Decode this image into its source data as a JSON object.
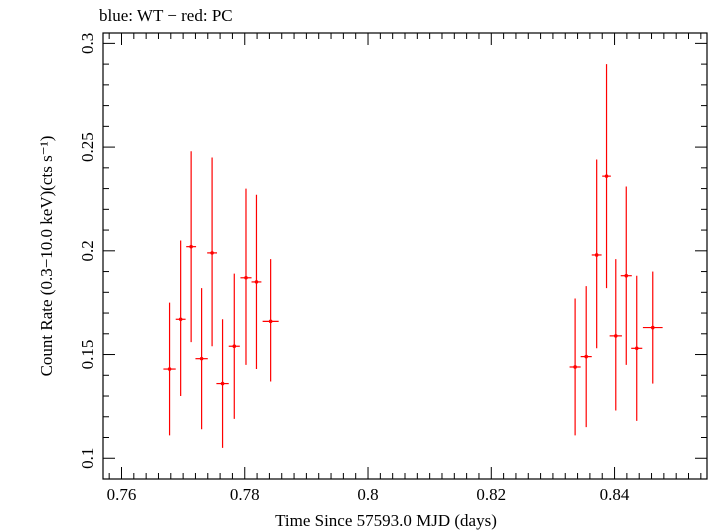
{
  "chart_data": {
    "type": "scatter",
    "title": "blue: WT − red: PC",
    "xlabel": "Time Since 57593.0 MJD (days)",
    "ylabel": "Count Rate (0.3−10.0 keV)(cts s⁻¹)",
    "xlim": [
      0.757,
      0.855
    ],
    "ylim": [
      0.09,
      0.305
    ],
    "x_ticks": [
      0.76,
      0.78,
      0.8,
      0.82,
      0.84
    ],
    "x_tick_labels": [
      "0.76",
      "0.78",
      "0.8",
      "0.82",
      "0.84"
    ],
    "y_ticks": [
      0.1,
      0.15,
      0.2,
      0.25,
      0.3
    ],
    "y_tick_labels": [
      "0.1",
      "0.15",
      "0.2",
      "0.25",
      "0.3"
    ],
    "grid": false,
    "series": [
      {
        "name": "PC",
        "color": "#ff0000",
        "points": [
          {
            "x": 0.7678,
            "xerr": 0.001,
            "y": 0.143,
            "yerr_lo": 0.032,
            "yerr_hi": 0.032
          },
          {
            "x": 0.7696,
            "xerr": 0.0008,
            "y": 0.167,
            "yerr_lo": 0.037,
            "yerr_hi": 0.038
          },
          {
            "x": 0.7713,
            "xerr": 0.0008,
            "y": 0.202,
            "yerr_lo": 0.046,
            "yerr_hi": 0.046
          },
          {
            "x": 0.773,
            "xerr": 0.001,
            "y": 0.148,
            "yerr_lo": 0.034,
            "yerr_hi": 0.034
          },
          {
            "x": 0.7747,
            "xerr": 0.0008,
            "y": 0.199,
            "yerr_lo": 0.045,
            "yerr_hi": 0.046
          },
          {
            "x": 0.7764,
            "xerr": 0.001,
            "y": 0.136,
            "yerr_lo": 0.031,
            "yerr_hi": 0.031
          },
          {
            "x": 0.7783,
            "xerr": 0.0009,
            "y": 0.154,
            "yerr_lo": 0.035,
            "yerr_hi": 0.035
          },
          {
            "x": 0.7802,
            "xerr": 0.0009,
            "y": 0.187,
            "yerr_lo": 0.042,
            "yerr_hi": 0.043
          },
          {
            "x": 0.7819,
            "xerr": 0.0008,
            "y": 0.185,
            "yerr_lo": 0.042,
            "yerr_hi": 0.042
          },
          {
            "x": 0.7842,
            "xerr": 0.0013,
            "y": 0.166,
            "yerr_lo": 0.029,
            "yerr_hi": 0.03
          },
          {
            "x": 0.8336,
            "xerr": 0.0009,
            "y": 0.144,
            "yerr_lo": 0.033,
            "yerr_hi": 0.033
          },
          {
            "x": 0.8354,
            "xerr": 0.0009,
            "y": 0.149,
            "yerr_lo": 0.034,
            "yerr_hi": 0.034
          },
          {
            "x": 0.8371,
            "xerr": 0.0008,
            "y": 0.198,
            "yerr_lo": 0.045,
            "yerr_hi": 0.046
          },
          {
            "x": 0.8387,
            "xerr": 0.0007,
            "y": 0.236,
            "yerr_lo": 0.054,
            "yerr_hi": 0.054
          },
          {
            "x": 0.8402,
            "xerr": 0.001,
            "y": 0.159,
            "yerr_lo": 0.036,
            "yerr_hi": 0.037
          },
          {
            "x": 0.8419,
            "xerr": 0.0009,
            "y": 0.188,
            "yerr_lo": 0.043,
            "yerr_hi": 0.043
          },
          {
            "x": 0.8436,
            "xerr": 0.0009,
            "y": 0.153,
            "yerr_lo": 0.035,
            "yerr_hi": 0.035
          },
          {
            "x": 0.8462,
            "xerr": 0.0016,
            "y": 0.163,
            "yerr_lo": 0.027,
            "yerr_hi": 0.027
          }
        ]
      }
    ]
  }
}
